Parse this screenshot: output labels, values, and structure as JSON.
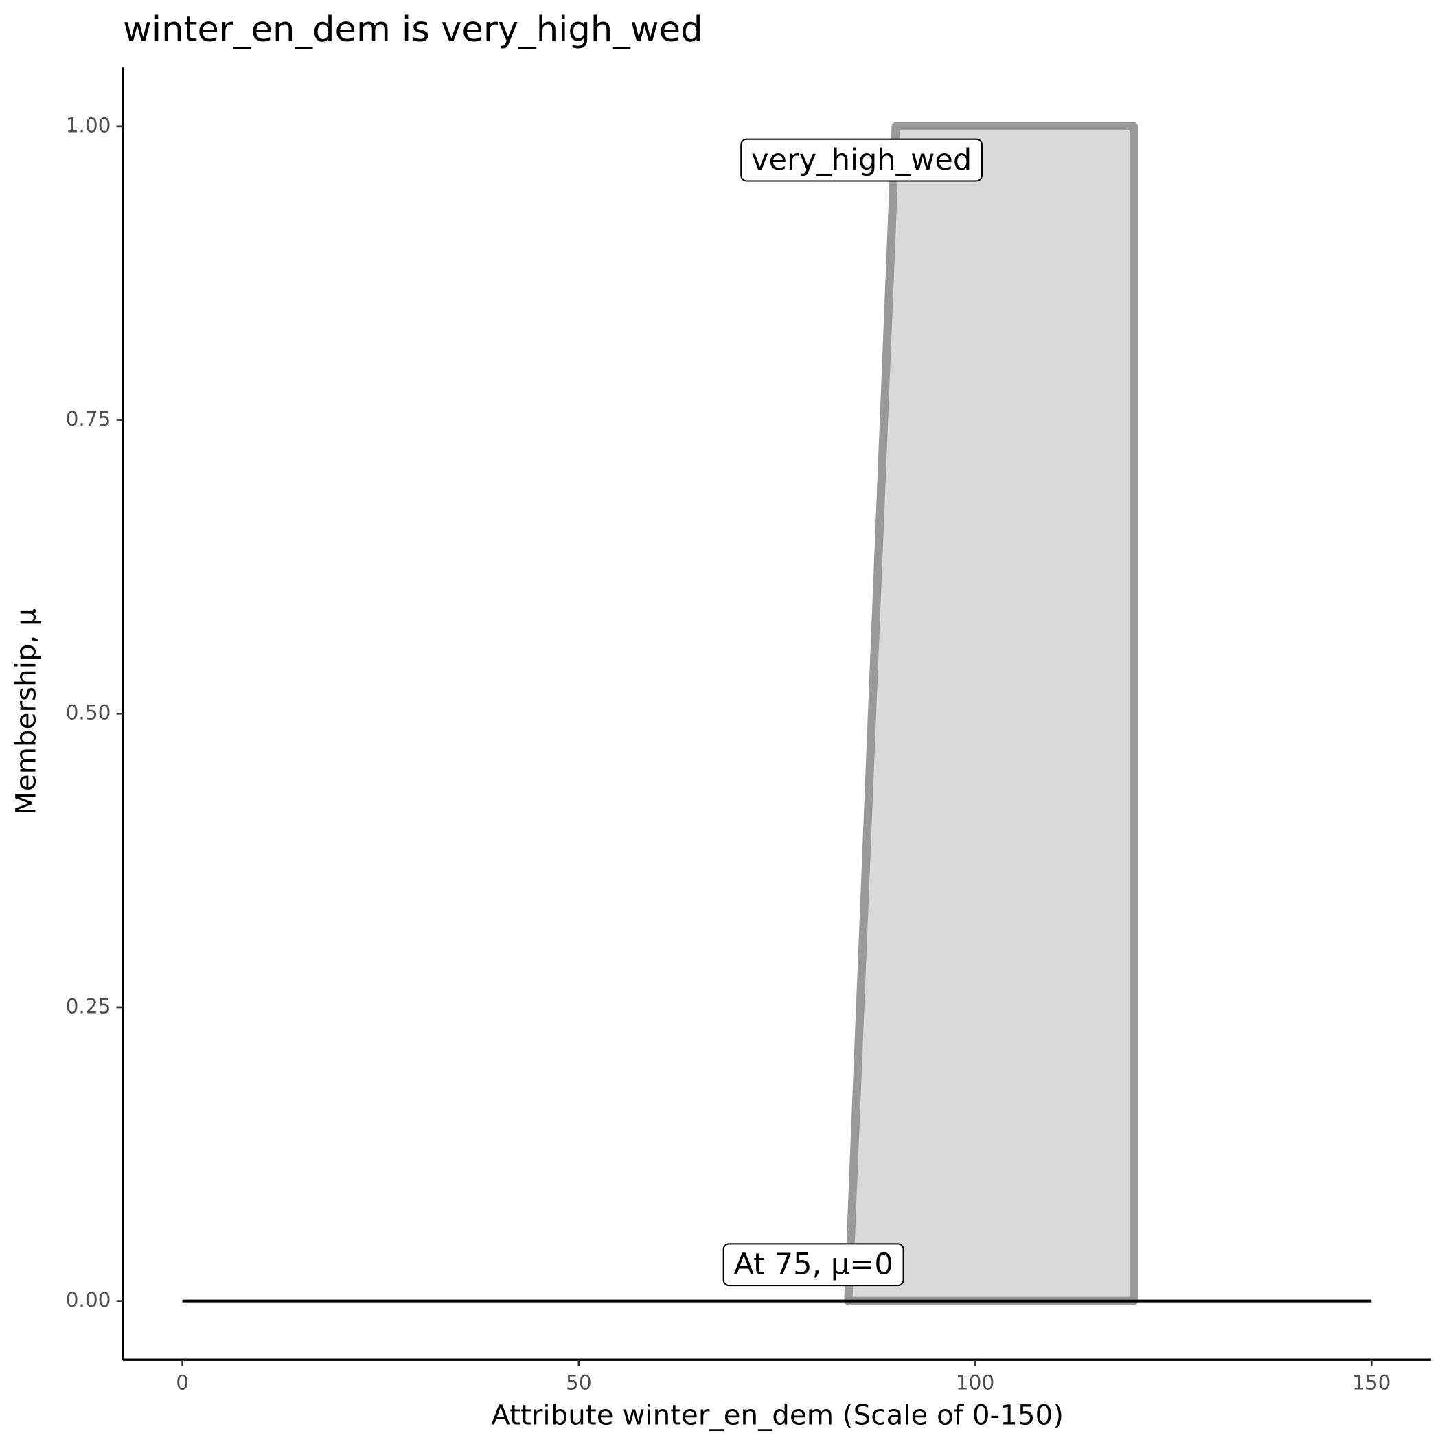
{
  "chart_data": {
    "type": "area",
    "title": "winter_en_dem is very_high_wed",
    "x_label": "Attribute winter_en_dem (Scale of 0-150)",
    "y_label": "Membership, μ",
    "annotation": "At 75, μ=0",
    "series": [
      {
        "name": "very_high_wed",
        "color": "#999999",
        "fill": "#d9d9d9",
        "x": [
          84,
          90,
          120,
          120
        ],
        "values": [
          0,
          1,
          1,
          0
        ]
      },
      {
        "color": "#000000",
        "x": [
          0,
          150
        ],
        "values": [
          0,
          0
        ]
      }
    ],
    "xlim": [
      -7.5,
      157.5
    ],
    "ylim": [
      -0.05,
      1.05
    ],
    "xticks": [
      0,
      50,
      100,
      150
    ],
    "yticks": [
      {
        "value": 0,
        "label": "0.00"
      },
      0.25,
      {
        "value": 0.5,
        "label": "0.50"
      },
      0.75,
      {
        "value": 1,
        "label": "1.00"
      }
    ],
    "grid": false
  }
}
